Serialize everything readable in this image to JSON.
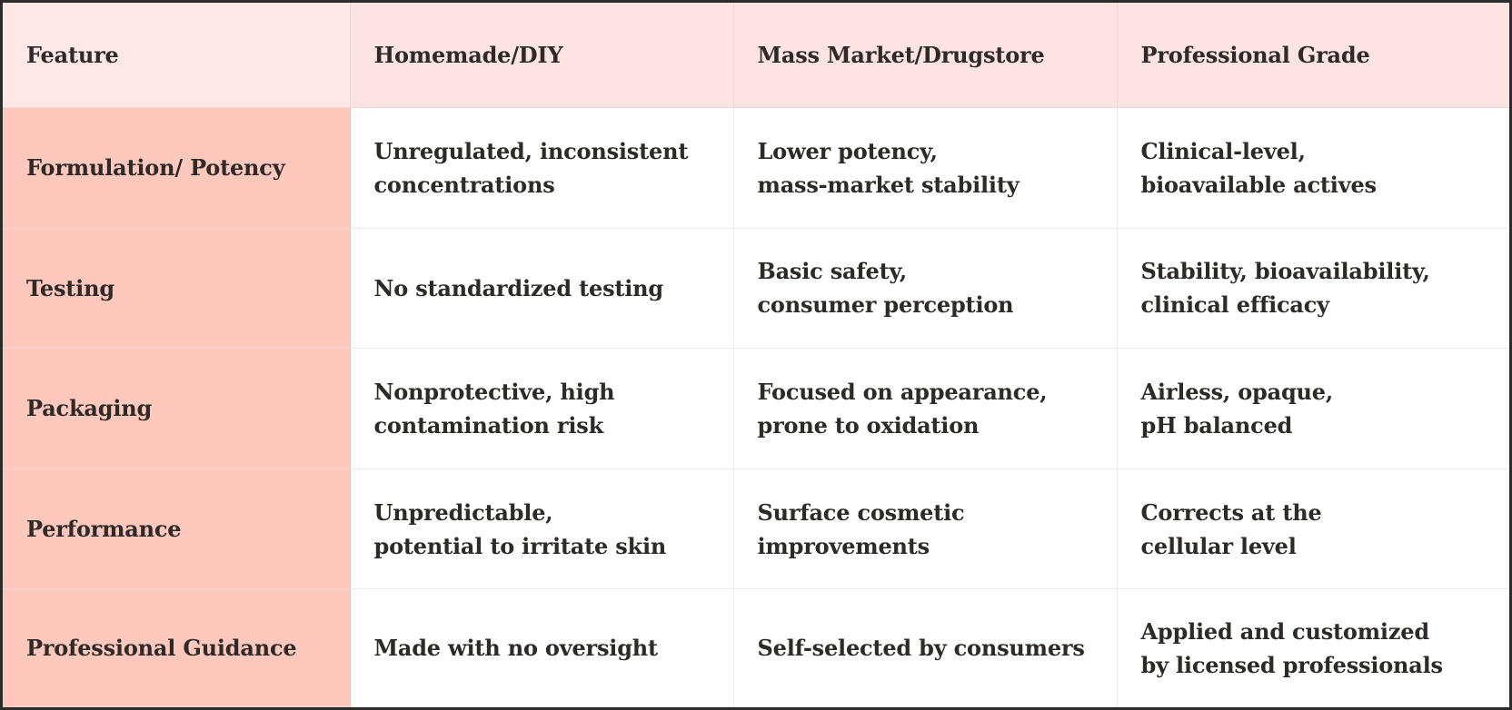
{
  "table": {
    "headers": [
      "Feature",
      "Homemade/DIY",
      "Mass Market/Drugstore",
      "Professional Grade"
    ],
    "rows": [
      {
        "feature": "Formulation/ Potency",
        "cells": [
          "Unregulated, inconsistent\nconcentrations",
          "Lower potency,\nmass-market stability",
          "Clinical-level,\nbioavailable actives"
        ]
      },
      {
        "feature": "Testing",
        "cells": [
          "No standardized testing",
          "Basic safety,\nconsumer perception",
          "Stability, bioavailability,\nclinical efficacy"
        ]
      },
      {
        "feature": "Packaging",
        "cells": [
          "Nonprotective, high\ncontamination risk",
          "Focused on appearance,\nprone to oxidation",
          "Airless, opaque,\npH balanced"
        ]
      },
      {
        "feature": "Performance",
        "cells": [
          "Unpredictable,\npotential to irritate skin",
          "Surface cosmetic\nimprovements",
          "Corrects at the\ncellular level"
        ]
      },
      {
        "feature": "Professional Guidance",
        "cells": [
          "Made with no oversight",
          "Self-selected by consumers",
          "Applied and customized\nby licensed professionals"
        ]
      }
    ]
  },
  "colors": {
    "header_bg": "#fde3e1",
    "row_header_bg": "#ffc8bd",
    "cell_bg": "#ffffff",
    "text": "#2e2a28",
    "frame": "#2c2c2c"
  }
}
